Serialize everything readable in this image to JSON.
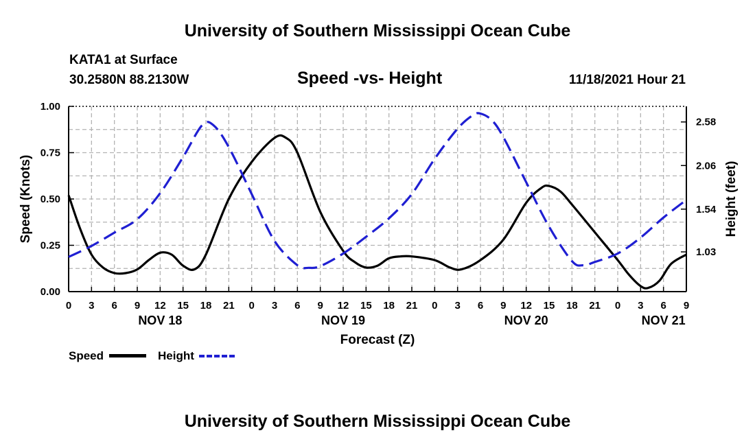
{
  "header": {
    "title": "University of Southern Mississippi Ocean Cube",
    "station": "KATA1 at Surface",
    "location": "30.2580N  88.2130W",
    "datetime": "11/18/2021 Hour 21",
    "footer_title": "University of Southern Mississippi Ocean Cube"
  },
  "chart_data": {
    "type": "line",
    "title": "Speed -vs- Height",
    "xlabel": "Forecast (Z)",
    "ylabel": "Speed (Knots)",
    "y2label": "Height (feet)",
    "ylim": [
      0,
      1
    ],
    "y2lim": [
      0.556,
      2.766
    ],
    "x_hours_range": [
      0,
      81
    ],
    "x_ticks": [
      {
        "h": 0,
        "label": "0"
      },
      {
        "h": 3,
        "label": "3"
      },
      {
        "h": 6,
        "label": "6"
      },
      {
        "h": 9,
        "label": "9"
      },
      {
        "h": 12,
        "label": "12"
      },
      {
        "h": 15,
        "label": "15"
      },
      {
        "h": 18,
        "label": "18"
      },
      {
        "h": 21,
        "label": "21"
      },
      {
        "h": 24,
        "label": "0"
      },
      {
        "h": 27,
        "label": "3"
      },
      {
        "h": 30,
        "label": "6"
      },
      {
        "h": 33,
        "label": "9"
      },
      {
        "h": 36,
        "label": "12"
      },
      {
        "h": 39,
        "label": "15"
      },
      {
        "h": 42,
        "label": "18"
      },
      {
        "h": 45,
        "label": "21"
      },
      {
        "h": 48,
        "label": "0"
      },
      {
        "h": 51,
        "label": "3"
      },
      {
        "h": 54,
        "label": "6"
      },
      {
        "h": 57,
        "label": "9"
      },
      {
        "h": 60,
        "label": "12"
      },
      {
        "h": 63,
        "label": "15"
      },
      {
        "h": 66,
        "label": "18"
      },
      {
        "h": 69,
        "label": "21"
      },
      {
        "h": 72,
        "label": "0"
      },
      {
        "h": 75,
        "label": "3"
      },
      {
        "h": 78,
        "label": "6"
      },
      {
        "h": 81,
        "label": "9"
      }
    ],
    "day_labels": [
      {
        "h": 12,
        "label": "NOV 18"
      },
      {
        "h": 36,
        "label": "NOV 19"
      },
      {
        "h": 60,
        "label": "NOV 20"
      },
      {
        "h": 78,
        "label": "NOV 21"
      }
    ],
    "y_ticks": [
      {
        "v": 0.0,
        "label": "0.00"
      },
      {
        "v": 0.25,
        "label": "0.25"
      },
      {
        "v": 0.5,
        "label": "0.50"
      },
      {
        "v": 0.75,
        "label": "0.75"
      },
      {
        "v": 1.0,
        "label": "1.00"
      }
    ],
    "y2_ticks": [
      {
        "v": 1.03,
        "label": "1.03"
      },
      {
        "v": 1.54,
        "label": "1.54"
      },
      {
        "v": 2.06,
        "label": "2.06"
      },
      {
        "v": 2.58,
        "label": "2.58"
      }
    ],
    "series": [
      {
        "name": "Speed",
        "axis": "left",
        "color": "#000000",
        "dash": "none",
        "points": [
          [
            0,
            0.52
          ],
          [
            1.5,
            0.34
          ],
          [
            3,
            0.2
          ],
          [
            4.5,
            0.13
          ],
          [
            6,
            0.1
          ],
          [
            7.5,
            0.1
          ],
          [
            9,
            0.12
          ],
          [
            10.5,
            0.17
          ],
          [
            12,
            0.21
          ],
          [
            13.5,
            0.2
          ],
          [
            15,
            0.14
          ],
          [
            16.5,
            0.12
          ],
          [
            18,
            0.2
          ],
          [
            21,
            0.5
          ],
          [
            24,
            0.7
          ],
          [
            27,
            0.83
          ],
          [
            28.5,
            0.83
          ],
          [
            30,
            0.75
          ],
          [
            33,
            0.43
          ],
          [
            36,
            0.22
          ],
          [
            37.5,
            0.16
          ],
          [
            39,
            0.13
          ],
          [
            40.5,
            0.14
          ],
          [
            42,
            0.18
          ],
          [
            43.5,
            0.19
          ],
          [
            45,
            0.19
          ],
          [
            48,
            0.17
          ],
          [
            50,
            0.13
          ],
          [
            51.5,
            0.12
          ],
          [
            54,
            0.17
          ],
          [
            57,
            0.28
          ],
          [
            60,
            0.48
          ],
          [
            62,
            0.56
          ],
          [
            63,
            0.57
          ],
          [
            64.5,
            0.54
          ],
          [
            66,
            0.47
          ],
          [
            69,
            0.32
          ],
          [
            72,
            0.17
          ],
          [
            73.5,
            0.09
          ],
          [
            75,
            0.03
          ],
          [
            76,
            0.02
          ],
          [
            77.5,
            0.06
          ],
          [
            79,
            0.15
          ],
          [
            81,
            0.2
          ]
        ]
      },
      {
        "name": "Height",
        "axis": "right",
        "color": "#1f1fd2",
        "dash": "20,9",
        "points": [
          [
            0,
            0.97
          ],
          [
            3,
            1.1
          ],
          [
            6,
            1.26
          ],
          [
            9,
            1.42
          ],
          [
            12,
            1.73
          ],
          [
            15,
            2.16
          ],
          [
            17.5,
            2.54
          ],
          [
            19,
            2.54
          ],
          [
            21,
            2.28
          ],
          [
            24,
            1.72
          ],
          [
            27,
            1.16
          ],
          [
            30,
            0.87
          ],
          [
            31.5,
            0.84
          ],
          [
            33,
            0.86
          ],
          [
            36,
            1.01
          ],
          [
            39,
            1.21
          ],
          [
            42,
            1.43
          ],
          [
            45,
            1.72
          ],
          [
            48,
            2.14
          ],
          [
            51,
            2.5
          ],
          [
            53,
            2.66
          ],
          [
            54,
            2.68
          ],
          [
            55.5,
            2.6
          ],
          [
            57,
            2.4
          ],
          [
            60,
            1.86
          ],
          [
            63,
            1.33
          ],
          [
            66,
            0.92
          ],
          [
            67.5,
            0.87
          ],
          [
            69,
            0.91
          ],
          [
            72,
            1.01
          ],
          [
            75,
            1.2
          ],
          [
            78,
            1.44
          ],
          [
            81,
            1.65
          ]
        ]
      }
    ]
  }
}
